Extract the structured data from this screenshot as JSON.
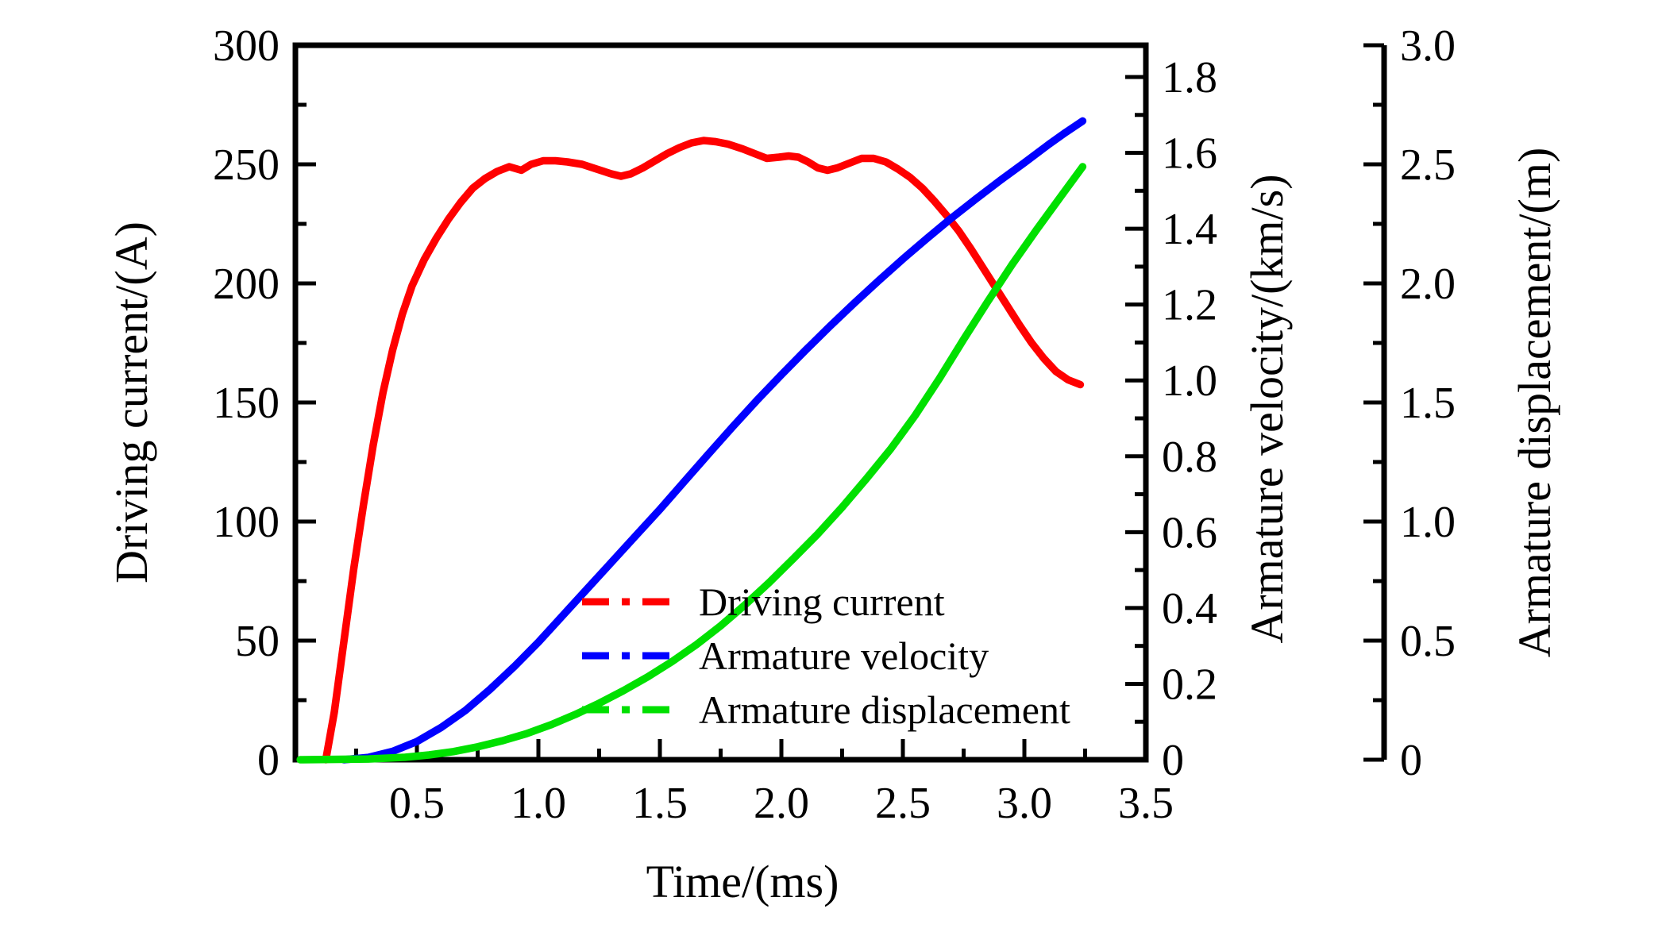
{
  "figure": {
    "background": "#ffffff",
    "text_color": "#000000"
  },
  "chart_data": {
    "type": "line",
    "title": "",
    "xlabel": "Time/(ms)",
    "grid": "off",
    "legend_position": "inside-bottom-center",
    "x_axis": {
      "lim": [
        0,
        3.5
      ],
      "major_tick_values": [
        0.5,
        1.0,
        1.5,
        2.0,
        2.5,
        3.0,
        3.5
      ],
      "major_tick_labels": [
        "0.5",
        "1.0",
        "1.5",
        "2.0",
        "2.5",
        "3.0",
        "3.5"
      ],
      "minor_step": 0.25
    },
    "axes": {
      "current": {
        "label": "Driving current/(A)",
        "side": "left",
        "lim": [
          0,
          300
        ],
        "major_tick_values": [
          0,
          50,
          100,
          150,
          200,
          250,
          300
        ],
        "major_tick_labels": [
          "0",
          "50",
          "100",
          "150",
          "200",
          "250",
          "300"
        ],
        "minor_step": 25
      },
      "velocity": {
        "label": "Armature velocity/(km/s)",
        "side": "right",
        "lim": [
          0,
          1.8
        ],
        "major_tick_values": [
          0,
          0.2,
          0.4,
          0.6,
          0.8,
          1.0,
          1.2,
          1.4,
          1.6,
          1.8
        ],
        "major_tick_labels": [
          "0",
          "0.2",
          "0.4",
          "0.6",
          "0.8",
          "1.0",
          "1.2",
          "1.4",
          "1.6",
          "1.8"
        ],
        "minor_step": 0.1
      },
      "displacement": {
        "label": "Armature displacement/(m)",
        "side": "right-outer",
        "lim": [
          0,
          3.0
        ],
        "major_tick_values": [
          0,
          0.5,
          1.0,
          1.5,
          2.0,
          2.5,
          3.0
        ],
        "major_tick_labels": [
          "0",
          "0.5",
          "1.0",
          "1.5",
          "2.0",
          "2.5",
          "3.0"
        ],
        "minor_step": 0.25
      }
    },
    "series": [
      {
        "name": "Driving current",
        "color": "#ff0000",
        "axis": "current",
        "points": [
          [
            0.125,
            0
          ],
          [
            0.16,
            20
          ],
          [
            0.2,
            50
          ],
          [
            0.24,
            80
          ],
          [
            0.28,
            107
          ],
          [
            0.32,
            132
          ],
          [
            0.36,
            154
          ],
          [
            0.4,
            172
          ],
          [
            0.44,
            187
          ],
          [
            0.48,
            199
          ],
          [
            0.53,
            210
          ],
          [
            0.58,
            219
          ],
          [
            0.63,
            227
          ],
          [
            0.68,
            234
          ],
          [
            0.73,
            240
          ],
          [
            0.78,
            244
          ],
          [
            0.83,
            247
          ],
          [
            0.88,
            249
          ],
          [
            0.93,
            247.5
          ],
          [
            0.97,
            250
          ],
          [
            1.02,
            251.5
          ],
          [
            1.07,
            251.5
          ],
          [
            1.12,
            251
          ],
          [
            1.18,
            250
          ],
          [
            1.24,
            248
          ],
          [
            1.3,
            246
          ],
          [
            1.34,
            245
          ],
          [
            1.38,
            246
          ],
          [
            1.43,
            248.5
          ],
          [
            1.48,
            251.5
          ],
          [
            1.53,
            254.5
          ],
          [
            1.58,
            257
          ],
          [
            1.63,
            259
          ],
          [
            1.68,
            260
          ],
          [
            1.73,
            259.5
          ],
          [
            1.78,
            258.5
          ],
          [
            1.84,
            256.5
          ],
          [
            1.89,
            254.5
          ],
          [
            1.94,
            252.5
          ],
          [
            1.99,
            253
          ],
          [
            2.03,
            253.5
          ],
          [
            2.07,
            253
          ],
          [
            2.11,
            251
          ],
          [
            2.15,
            248.5
          ],
          [
            2.19,
            247.5
          ],
          [
            2.23,
            248.5
          ],
          [
            2.28,
            250.5
          ],
          [
            2.33,
            252.5
          ],
          [
            2.38,
            252.5
          ],
          [
            2.43,
            251
          ],
          [
            2.48,
            248
          ],
          [
            2.53,
            244.5
          ],
          [
            2.58,
            240
          ],
          [
            2.63,
            234.5
          ],
          [
            2.68,
            228.5
          ],
          [
            2.73,
            222
          ],
          [
            2.78,
            214.5
          ],
          [
            2.83,
            206.5
          ],
          [
            2.88,
            198.5
          ],
          [
            2.93,
            190.5
          ],
          [
            2.98,
            182.5
          ],
          [
            3.03,
            175
          ],
          [
            3.08,
            168.5
          ],
          [
            3.13,
            163
          ],
          [
            3.18,
            159.5
          ],
          [
            3.23,
            157.5
          ]
        ]
      },
      {
        "name": "Armature velocity",
        "color": "#0000ff",
        "axis": "velocity",
        "points": [
          [
            0.2,
            0
          ],
          [
            0.3,
            0.006
          ],
          [
            0.4,
            0.022
          ],
          [
            0.5,
            0.048
          ],
          [
            0.6,
            0.085
          ],
          [
            0.7,
            0.13
          ],
          [
            0.8,
            0.185
          ],
          [
            0.9,
            0.245
          ],
          [
            1.0,
            0.31
          ],
          [
            1.1,
            0.38
          ],
          [
            1.2,
            0.45
          ],
          [
            1.3,
            0.52
          ],
          [
            1.4,
            0.59
          ],
          [
            1.5,
            0.66
          ],
          [
            1.6,
            0.733
          ],
          [
            1.7,
            0.806
          ],
          [
            1.8,
            0.878
          ],
          [
            1.9,
            0.948
          ],
          [
            2.0,
            1.015
          ],
          [
            2.1,
            1.08
          ],
          [
            2.2,
            1.143
          ],
          [
            2.3,
            1.204
          ],
          [
            2.4,
            1.263
          ],
          [
            2.5,
            1.32
          ],
          [
            2.6,
            1.375
          ],
          [
            2.7,
            1.428
          ],
          [
            2.8,
            1.478
          ],
          [
            2.9,
            1.527
          ],
          [
            3.0,
            1.574
          ],
          [
            3.1,
            1.622
          ],
          [
            3.17,
            1.654
          ],
          [
            3.24,
            1.684
          ]
        ]
      },
      {
        "name": "Armature displacement",
        "color": "#00e000",
        "axis": "displacement",
        "points": [
          [
            0.02,
            0
          ],
          [
            0.3,
            0.003
          ],
          [
            0.45,
            0.01
          ],
          [
            0.55,
            0.02
          ],
          [
            0.65,
            0.034
          ],
          [
            0.75,
            0.054
          ],
          [
            0.85,
            0.079
          ],
          [
            0.95,
            0.109
          ],
          [
            1.05,
            0.146
          ],
          [
            1.15,
            0.189
          ],
          [
            1.25,
            0.237
          ],
          [
            1.35,
            0.29
          ],
          [
            1.45,
            0.348
          ],
          [
            1.55,
            0.412
          ],
          [
            1.65,
            0.483
          ],
          [
            1.75,
            0.562
          ],
          [
            1.85,
            0.65
          ],
          [
            1.95,
            0.744
          ],
          [
            2.05,
            0.845
          ],
          [
            2.15,
            0.948
          ],
          [
            2.25,
            1.06
          ],
          [
            2.35,
            1.18
          ],
          [
            2.45,
            1.305
          ],
          [
            2.55,
            1.445
          ],
          [
            2.65,
            1.6
          ],
          [
            2.75,
            1.765
          ],
          [
            2.85,
            1.925
          ],
          [
            2.95,
            2.08
          ],
          [
            3.05,
            2.225
          ],
          [
            3.15,
            2.365
          ],
          [
            3.24,
            2.49
          ]
        ]
      }
    ],
    "legend": {
      "line_style": "dash-dot",
      "entries": [
        "Driving current",
        "Armature velocity",
        "Armature displacement"
      ]
    }
  }
}
